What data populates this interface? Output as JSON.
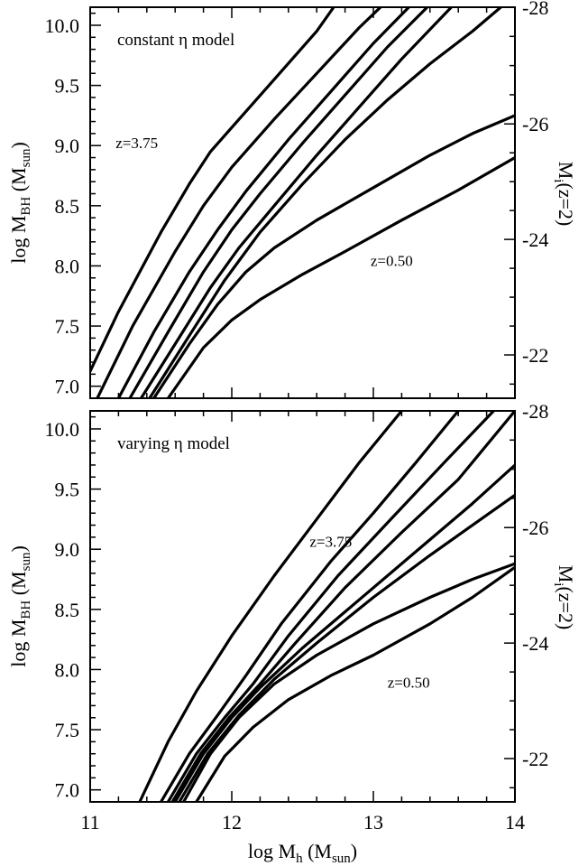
{
  "chart_data": [
    {
      "type": "line",
      "annotation": "constant η model",
      "x_axis": {
        "min": 11,
        "max": 14,
        "major_ticks": [
          11,
          12,
          13,
          14
        ],
        "minor_step": 0.2,
        "tick_labels": [
          "11",
          "12",
          "13",
          "14"
        ]
      },
      "y_axis": {
        "min": 6.9,
        "max": 10.15,
        "major_ticks": [
          7.0,
          7.5,
          8.0,
          8.5,
          9.0,
          9.5,
          10.0
        ],
        "minor_step": 0.1,
        "tick_labels": [
          "7.0",
          "7.5",
          "8.0",
          "8.5",
          "9.0",
          "9.5",
          "10.0"
        ],
        "ylabel_main": "log M",
        "ylabel_sub": "BH",
        "ylabel_unit": "(M",
        "ylabel_unit_sub": "sun",
        "ylabel_close": ")"
      },
      "right_axis": {
        "tick_values": [
          -28,
          -26,
          -24,
          -22
        ],
        "tick_data_positions": [
          10.15,
          9.18,
          8.22,
          7.26
        ],
        "tick_labels": [
          "-28",
          "-26",
          "-24",
          "-22"
        ],
        "label_main": "M",
        "label_sub": "i",
        "label_rest": "(z=2)"
      },
      "labels": [
        {
          "text": "z=3.75",
          "at": [
            11.18,
            8.98
          ]
        },
        {
          "text": "z=0.50",
          "at": [
            12.98,
            8.0
          ]
        }
      ],
      "series": [
        {
          "points": [
            [
              10.99,
              7.1
            ],
            [
              11.2,
              7.62
            ],
            [
              11.5,
              8.28
            ],
            [
              11.7,
              8.68
            ],
            [
              11.85,
              8.95
            ],
            [
              12.0,
              9.15
            ],
            [
              12.3,
              9.55
            ],
            [
              12.6,
              9.95
            ],
            [
              12.72,
              10.15
            ]
          ]
        },
        {
          "points": [
            [
              11.05,
              6.9
            ],
            [
              11.3,
              7.5
            ],
            [
              11.6,
              8.12
            ],
            [
              11.8,
              8.5
            ],
            [
              12.0,
              8.82
            ],
            [
              12.3,
              9.22
            ],
            [
              12.6,
              9.6
            ],
            [
              12.9,
              9.98
            ],
            [
              13.05,
              10.15
            ]
          ]
        },
        {
          "points": [
            [
              11.2,
              6.9
            ],
            [
              11.45,
              7.45
            ],
            [
              11.7,
              7.95
            ],
            [
              11.9,
              8.3
            ],
            [
              12.1,
              8.62
            ],
            [
              12.4,
              9.05
            ],
            [
              12.7,
              9.45
            ],
            [
              13.0,
              9.85
            ],
            [
              13.25,
              10.15
            ]
          ]
        },
        {
          "points": [
            [
              11.28,
              6.9
            ],
            [
              11.55,
              7.45
            ],
            [
              11.8,
              7.95
            ],
            [
              12.0,
              8.3
            ],
            [
              12.2,
              8.6
            ],
            [
              12.5,
              9.02
            ],
            [
              12.8,
              9.42
            ],
            [
              13.1,
              9.82
            ],
            [
              13.38,
              10.15
            ]
          ]
        },
        {
          "points": [
            [
              11.36,
              6.9
            ],
            [
              11.6,
              7.35
            ],
            [
              11.85,
              7.82
            ],
            [
              12.05,
              8.15
            ],
            [
              12.3,
              8.5
            ],
            [
              12.6,
              8.92
            ],
            [
              12.9,
              9.32
            ],
            [
              13.2,
              9.72
            ],
            [
              13.55,
              10.15
            ]
          ]
        },
        {
          "points": [
            [
              11.42,
              6.9
            ],
            [
              11.7,
              7.42
            ],
            [
              11.95,
              7.88
            ],
            [
              12.2,
              8.28
            ],
            [
              12.5,
              8.68
            ],
            [
              12.8,
              9.05
            ],
            [
              13.1,
              9.38
            ],
            [
              13.4,
              9.68
            ],
            [
              13.7,
              9.95
            ],
            [
              14.0,
              10.25
            ]
          ]
        },
        {
          "points": [
            [
              11.45,
              6.9
            ],
            [
              11.7,
              7.35
            ],
            [
              11.9,
              7.68
            ],
            [
              12.1,
              7.95
            ],
            [
              12.3,
              8.15
            ],
            [
              12.6,
              8.38
            ],
            [
              13.0,
              8.65
            ],
            [
              13.4,
              8.92
            ],
            [
              13.7,
              9.1
            ],
            [
              14.0,
              9.25
            ]
          ]
        },
        {
          "points": [
            [
              11.55,
              6.9
            ],
            [
              11.8,
              7.32
            ],
            [
              12.0,
              7.55
            ],
            [
              12.2,
              7.72
            ],
            [
              12.5,
              7.93
            ],
            [
              12.8,
              8.12
            ],
            [
              13.2,
              8.38
            ],
            [
              13.6,
              8.63
            ],
            [
              14.0,
              8.9
            ]
          ]
        }
      ]
    },
    {
      "type": "line",
      "annotation": "varying η model",
      "x_axis": {
        "min": 11,
        "max": 14,
        "major_ticks": [
          11,
          12,
          13,
          14
        ],
        "minor_step": 0.2,
        "tick_labels": [
          "11",
          "12",
          "13",
          "14"
        ],
        "xlabel_main": "log M",
        "xlabel_sub": "h",
        "xlabel_unit": "(M",
        "xlabel_unit_sub": "sun",
        "xlabel_close": ")"
      },
      "y_axis": {
        "min": 6.9,
        "max": 10.15,
        "major_ticks": [
          7.0,
          7.5,
          8.0,
          8.5,
          9.0,
          9.5,
          10.0
        ],
        "minor_step": 0.1,
        "tick_labels": [
          "7.0",
          "7.5",
          "8.0",
          "8.5",
          "9.0",
          "9.5",
          "10.0"
        ],
        "ylabel_main": "log M",
        "ylabel_sub": "BH",
        "ylabel_unit": "(M",
        "ylabel_unit_sub": "sun",
        "ylabel_close": ")"
      },
      "right_axis": {
        "tick_values": [
          -28,
          -26,
          -24,
          -22
        ],
        "tick_data_positions": [
          10.15,
          9.18,
          8.22,
          7.26
        ],
        "tick_labels": [
          "-28",
          "-26",
          "-24",
          "-22"
        ],
        "label_main": "M",
        "label_sub": "i",
        "label_rest": "(z=2)"
      },
      "labels": [
        {
          "text": "z=3.75",
          "at": [
            12.55,
            9.02
          ]
        },
        {
          "text": "z=0.50",
          "at": [
            13.1,
            7.85
          ]
        }
      ],
      "series": [
        {
          "points": [
            [
              11.35,
              6.9
            ],
            [
              11.55,
              7.4
            ],
            [
              11.75,
              7.82
            ],
            [
              12.0,
              8.28
            ],
            [
              12.3,
              8.78
            ],
            [
              12.6,
              9.25
            ],
            [
              12.9,
              9.72
            ],
            [
              13.2,
              10.15
            ]
          ]
        },
        {
          "points": [
            [
              11.5,
              6.9
            ],
            [
              11.7,
              7.3
            ],
            [
              11.9,
              7.62
            ],
            [
              12.1,
              7.95
            ],
            [
              12.35,
              8.38
            ],
            [
              12.7,
              8.9
            ],
            [
              13.0,
              9.3
            ],
            [
              13.3,
              9.72
            ],
            [
              13.6,
              10.15
            ]
          ]
        },
        {
          "points": [
            [
              11.55,
              6.9
            ],
            [
              11.75,
              7.3
            ],
            [
              11.95,
              7.6
            ],
            [
              12.15,
              7.88
            ],
            [
              12.4,
              8.28
            ],
            [
              12.75,
              8.78
            ],
            [
              13.1,
              9.22
            ],
            [
              13.5,
              9.72
            ],
            [
              13.85,
              10.15
            ]
          ]
        },
        {
          "points": [
            [
              11.58,
              6.9
            ],
            [
              11.78,
              7.3
            ],
            [
              11.98,
              7.6
            ],
            [
              12.2,
              7.88
            ],
            [
              12.45,
              8.22
            ],
            [
              12.8,
              8.68
            ],
            [
              13.2,
              9.14
            ],
            [
              13.6,
              9.58
            ],
            [
              14.0,
              10.15
            ]
          ]
        },
        {
          "points": [
            [
              11.6,
              6.9
            ],
            [
              11.8,
              7.3
            ],
            [
              12.0,
              7.6
            ],
            [
              12.2,
              7.85
            ],
            [
              12.5,
              8.18
            ],
            [
              12.9,
              8.58
            ],
            [
              13.3,
              8.98
            ],
            [
              13.7,
              9.38
            ],
            [
              14.0,
              9.7
            ]
          ]
        },
        {
          "points": [
            [
              11.63,
              6.9
            ],
            [
              11.83,
              7.3
            ],
            [
              12.05,
              7.62
            ],
            [
              12.3,
              7.92
            ],
            [
              12.6,
              8.22
            ],
            [
              13.0,
              8.6
            ],
            [
              13.4,
              8.95
            ],
            [
              13.7,
              9.2
            ],
            [
              14.0,
              9.45
            ]
          ]
        },
        {
          "points": [
            [
              11.66,
              6.9
            ],
            [
              11.85,
              7.3
            ],
            [
              12.05,
              7.6
            ],
            [
              12.3,
              7.88
            ],
            [
              12.6,
              8.12
            ],
            [
              13.0,
              8.38
            ],
            [
              13.4,
              8.6
            ],
            [
              13.7,
              8.75
            ],
            [
              14.0,
              8.88
            ]
          ]
        },
        {
          "points": [
            [
              11.75,
              6.9
            ],
            [
              11.95,
              7.28
            ],
            [
              12.15,
              7.52
            ],
            [
              12.4,
              7.75
            ],
            [
              12.7,
              7.95
            ],
            [
              13.0,
              8.12
            ],
            [
              13.4,
              8.38
            ],
            [
              13.7,
              8.6
            ],
            [
              14.0,
              8.85
            ]
          ]
        }
      ]
    }
  ]
}
